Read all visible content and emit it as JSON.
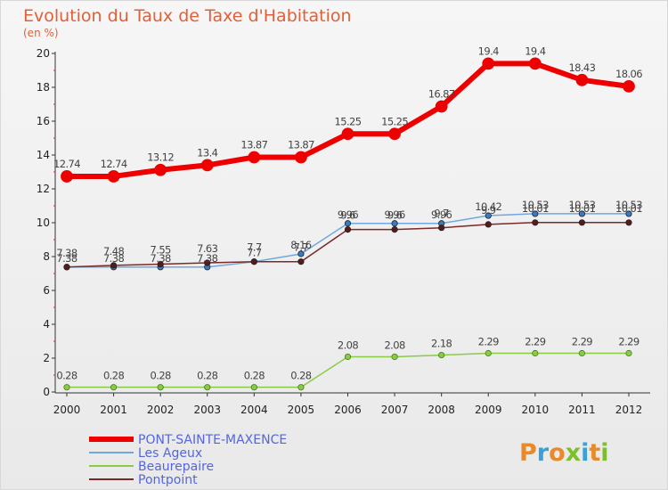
{
  "chart_data": {
    "type": "line",
    "title": "Evolution du Taux de Taxe d'Habitation",
    "subtitle": "(en %)",
    "xlabel": "",
    "ylabel": "",
    "ylim": [
      0,
      20
    ],
    "y_ticks": [
      "0",
      "2",
      "4",
      "6",
      "8",
      "10",
      "12",
      "14",
      "16",
      "18",
      "20"
    ],
    "categories": [
      "2000",
      "2001",
      "2002",
      "2003",
      "2004",
      "2005",
      "2006",
      "2007",
      "2008",
      "2009",
      "2010",
      "2011",
      "2012"
    ],
    "series": [
      {
        "name": "PONT-SAINTE-MAXENCE",
        "color": "#ee0000",
        "values": [
          12.74,
          12.74,
          13.12,
          13.4,
          13.87,
          13.87,
          15.25,
          15.25,
          16.87,
          19.4,
          19.4,
          18.43,
          18.06
        ],
        "labels": [
          "12.74",
          "12.74",
          "13.12",
          "13.4",
          "13.87",
          "13.87",
          "15.25",
          "15.25",
          "16.87",
          "19.4",
          "19.4",
          "18.43",
          "18.06"
        ]
      },
      {
        "name": "Les Ageux",
        "color": "#6fa8dc",
        "values": [
          7.38,
          7.38,
          7.38,
          7.38,
          7.7,
          8.16,
          9.96,
          9.96,
          9.96,
          10.42,
          10.53,
          10.53,
          10.53
        ],
        "labels": [
          "7.38",
          "7.38",
          "7.38",
          "7.38",
          "7.7",
          "8.16",
          "9.96",
          "9.96",
          "9.96",
          "10.42",
          "10.53",
          "10.53",
          "10.53"
        ]
      },
      {
        "name": "Beaurepaire",
        "color": "#88cc44",
        "values": [
          0.28,
          0.28,
          0.28,
          0.28,
          0.28,
          0.28,
          2.08,
          2.08,
          2.18,
          2.29,
          2.29,
          2.29,
          2.29
        ],
        "labels": [
          "0.28",
          "0.28",
          "0.28",
          "0.28",
          "0.28",
          "0.28",
          "2.08",
          "2.08",
          "2.18",
          "2.29",
          "2.29",
          "2.29",
          "2.29"
        ]
      },
      {
        "name": "Pontpoint",
        "color": "#7a2a2a",
        "values": [
          7.38,
          7.48,
          7.55,
          7.63,
          7.7,
          7.7,
          9.6,
          9.6,
          9.7,
          9.9,
          10.01,
          10.01,
          10.01
        ],
        "labels": [
          "7.38",
          "7.48",
          "7.55",
          "7.63",
          "7.7",
          "7.7",
          "9.6",
          "9.6",
          "9.7",
          "9.9",
          "10.01",
          "10.01",
          "10.01"
        ]
      }
    ],
    "legend_position": "bottom-left",
    "grid": false
  },
  "logo": {
    "text": "Proxiti",
    "colors": [
      "#e88a2a",
      "#3aa0d8",
      "#e88a2a",
      "#7bbf2a",
      "#3aa0d8",
      "#e88a2a",
      "#7bbf2a"
    ]
  }
}
